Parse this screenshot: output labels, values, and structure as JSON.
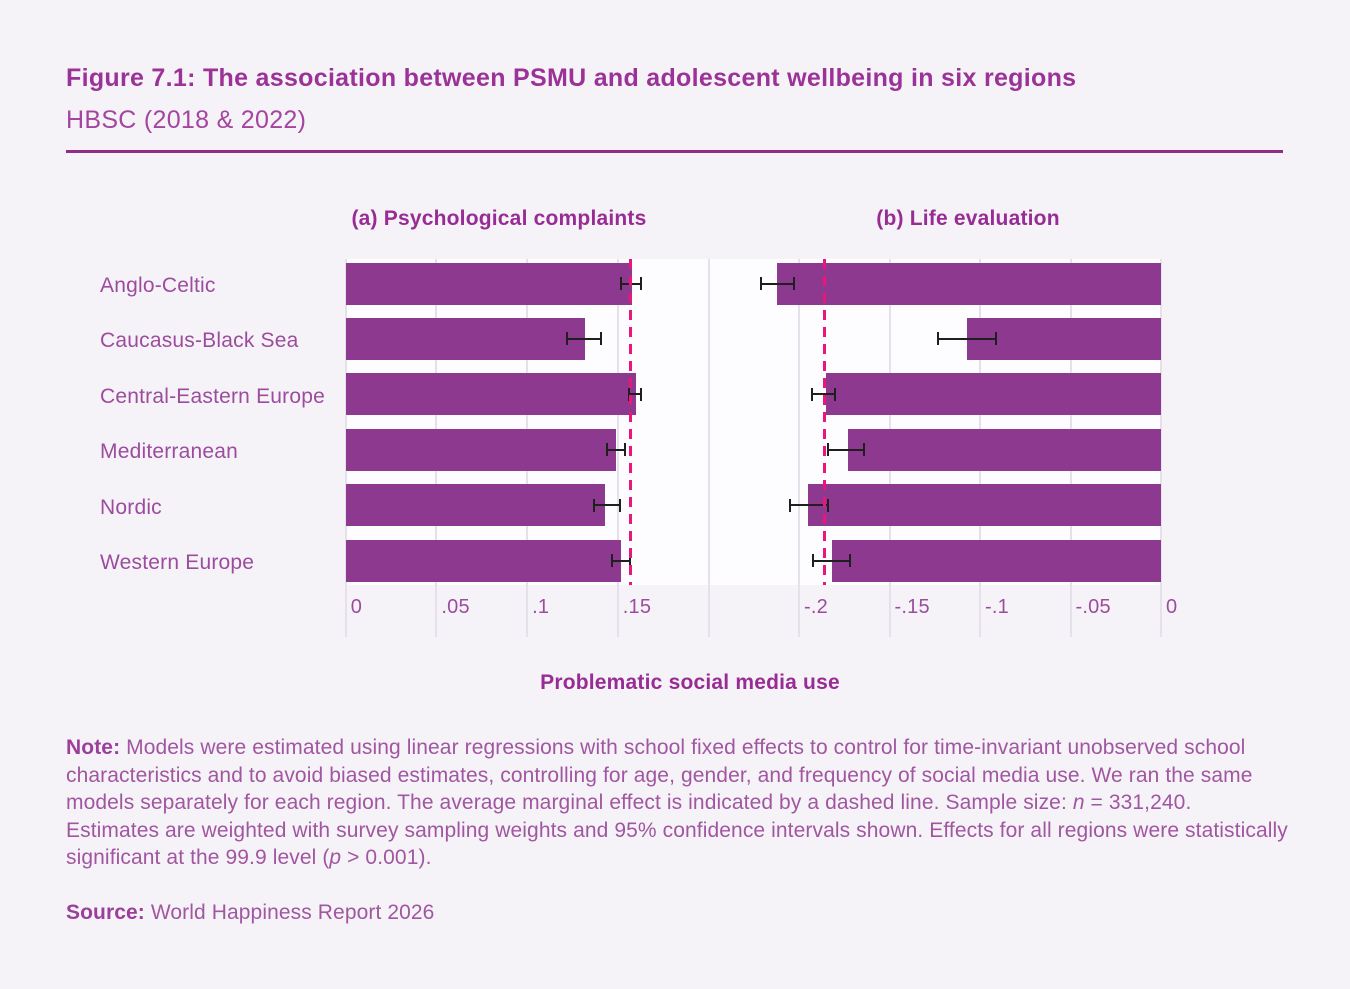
{
  "header": {
    "title": "Figure 7.1: The association between PSMU and adolescent wellbeing in six regions",
    "subtitle": "HBSC (2018 & 2022)"
  },
  "chart_data": {
    "type": "bar",
    "orientation": "horizontal",
    "categories": [
      "Anglo-Celtic",
      "Caucasus-Black Sea",
      "Central-Eastern Europe",
      "Mediterranean",
      "Nordic",
      "Western Europe"
    ],
    "shared_xlabel": "Problematic social media use",
    "error_bars": "95% confidence intervals",
    "dashed_line_meaning": "average marginal effect",
    "legend": "none",
    "grid": "vertical only",
    "panels": [
      {
        "id": "a",
        "title": "(a) Psychological complaints",
        "xlim": [
          0,
          0.2
        ],
        "ticks": [
          0,
          0.05,
          0.1,
          0.15
        ],
        "tick_labels": [
          "0",
          ".05",
          ".1",
          ".15"
        ],
        "values": [
          0.158,
          0.132,
          0.16,
          0.149,
          0.143,
          0.152
        ],
        "ci_low": [
          0.152,
          0.122,
          0.156,
          0.144,
          0.137,
          0.147
        ],
        "ci_high": [
          0.163,
          0.141,
          0.163,
          0.154,
          0.151,
          0.157
        ],
        "dashed_line": 0.157
      },
      {
        "id": "b",
        "title": "(b) Life evaluation",
        "xlim": [
          -0.25,
          0
        ],
        "ticks": [
          -0.2,
          -0.15,
          -0.1,
          -0.05,
          0
        ],
        "tick_labels": [
          "-.2",
          "-.15",
          "-.1",
          "-.05",
          "0"
        ],
        "values": [
          -0.212,
          -0.107,
          -0.185,
          -0.173,
          -0.195,
          -0.182
        ],
        "ci_low": [
          -0.221,
          -0.123,
          -0.193,
          -0.184,
          -0.205,
          -0.192
        ],
        "ci_high": [
          -0.203,
          -0.091,
          -0.18,
          -0.164,
          -0.184,
          -0.172
        ],
        "dashed_line": -0.186
      }
    ],
    "colors": {
      "bar": "#8e3990",
      "dashed_line": "#e7177e",
      "error_bar": "#1f1f1f",
      "plot_background": "#fdfcfe",
      "page_background": "#f5f3f7",
      "gridline": "#e6e0eb",
      "title_text": "#9b3297",
      "body_text": "#a156a1",
      "rule": "#8e2d8a"
    }
  },
  "note": {
    "segments": [
      {
        "text": "Note:",
        "bold": true
      },
      {
        "text": " Models were estimated using linear regressions with school fixed effects to control for time-invariant unobserved school characteristics and to avoid biased estimates, controlling for age, gender, and frequency of social media use. We ran the same models separately for each region. The average marginal effect is indicated by a dashed line. Sample size: "
      },
      {
        "text": "n",
        "italic": true
      },
      {
        "text": " = 331,240. Estimates are weighted with survey sampling weights and 95% confidence intervals shown. Effects for all regions were statistically significant at the 99.9 level ("
      },
      {
        "text": "p",
        "italic": true
      },
      {
        "text": " > 0.001)."
      }
    ]
  },
  "source": {
    "segments": [
      {
        "text": "Source:",
        "bold": true
      },
      {
        "text": " World Happiness Report 2026"
      }
    ]
  }
}
